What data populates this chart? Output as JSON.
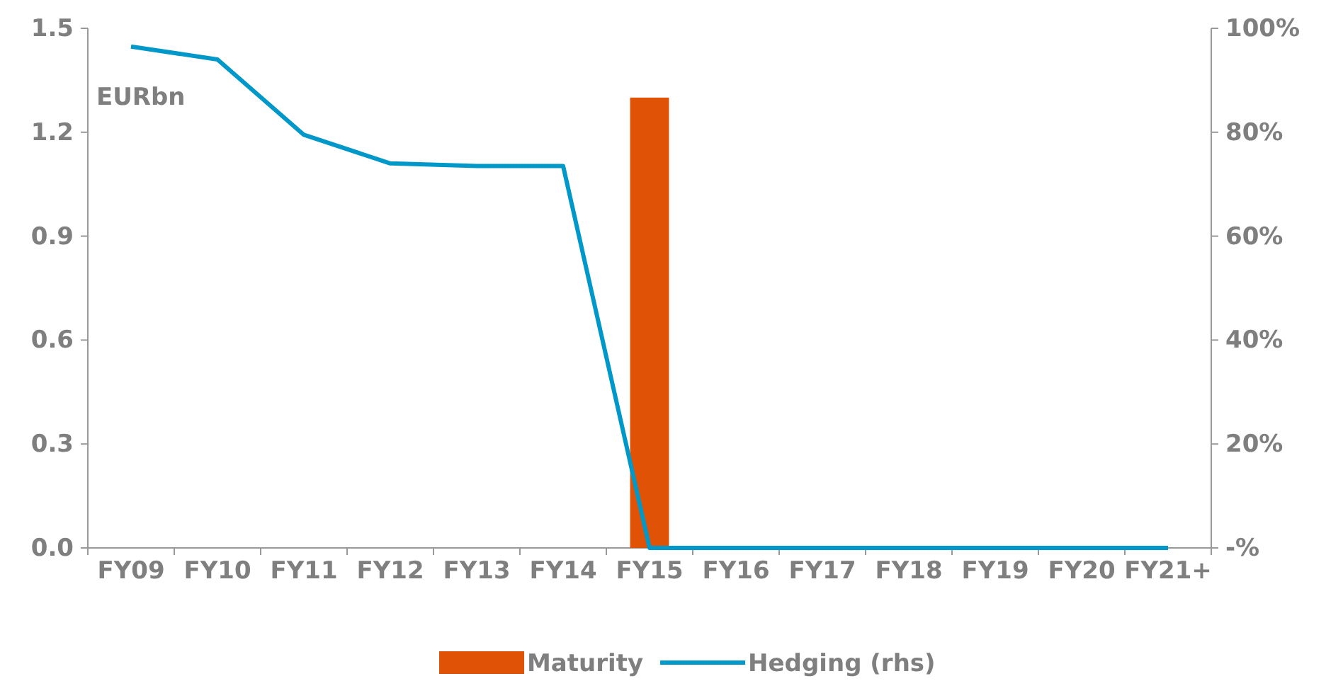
{
  "chart_data": {
    "type": "bar",
    "categories": [
      "FY09",
      "FY10",
      "FY11",
      "FY12",
      "FY13",
      "FY14",
      "FY15",
      "FY16",
      "FY17",
      "FY18",
      "FY19",
      "FY20",
      "FY21+"
    ],
    "series": [
      {
        "name": "Maturity",
        "color": "#e05206",
        "values": [
          0,
          0,
          0,
          0,
          0,
          0,
          1.3,
          0,
          0,
          0,
          0,
          0,
          0
        ]
      },
      {
        "name": "Hedging (rhs)",
        "type": "line",
        "axis": "y2",
        "color": "#0098c8",
        "values": [
          96.5,
          94,
          79.5,
          74,
          73.5,
          73.5,
          0,
          0,
          0,
          0,
          0,
          0,
          0
        ]
      }
    ],
    "ylim": [
      0,
      1.5
    ],
    "yticks": [
      {
        "value": 0,
        "label": "0.0"
      },
      0.3,
      0.6,
      0.9,
      1.2,
      1.5
    ],
    "y2lim": [
      0,
      100
    ],
    "y2ticks": [
      {
        "value": 0,
        "label": "-%"
      },
      {
        "value": 20,
        "label": "20%"
      },
      {
        "value": 40,
        "label": "40%"
      },
      {
        "value": 60,
        "label": "60%"
      },
      {
        "value": 80,
        "label": "80%"
      },
      {
        "value": 100,
        "label": "100%"
      }
    ],
    "annotations": [
      "EURbn"
    ],
    "legend": "bottom",
    "grid": false,
    "marker": "none",
    "line_style": "solid"
  }
}
